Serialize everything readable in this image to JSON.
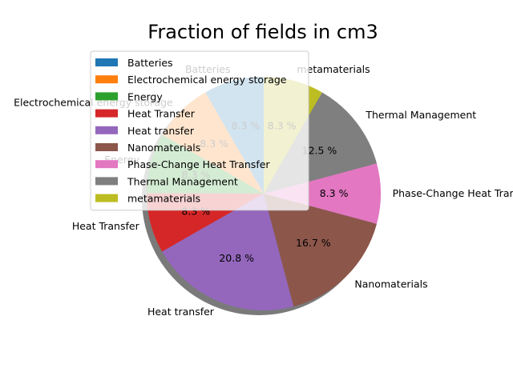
{
  "chart_data": {
    "type": "pie",
    "title": "Fraction of fields in cm3",
    "categories": [
      "Batteries",
      "Electrochemical energy storage",
      "Energy",
      "Heat Transfer",
      "Heat transfer",
      "Nanomaterials",
      "Phase-Change Heat Transfer",
      "Thermal Management",
      "metamaterials"
    ],
    "values": [
      8.3,
      8.3,
      8.3,
      8.3,
      20.8,
      16.7,
      8.3,
      12.5,
      8.3
    ],
    "percent_labels": [
      "8.3 %",
      "8.3 %",
      "8.3 %",
      "8.3 %",
      "20.8 %",
      "16.7 %",
      "8.3 %",
      "12.5 %",
      "8.3 %"
    ],
    "colors": [
      "#1f77b4",
      "#ff7f0e",
      "#2ca02c",
      "#d62728",
      "#9467bd",
      "#8c564b",
      "#e377c2",
      "#7f7f7f",
      "#bcbd22"
    ],
    "start_angle_deg": 90,
    "direction": "counterclockwise",
    "shadow": true,
    "legend_position": "top-left, overlapping pie"
  }
}
